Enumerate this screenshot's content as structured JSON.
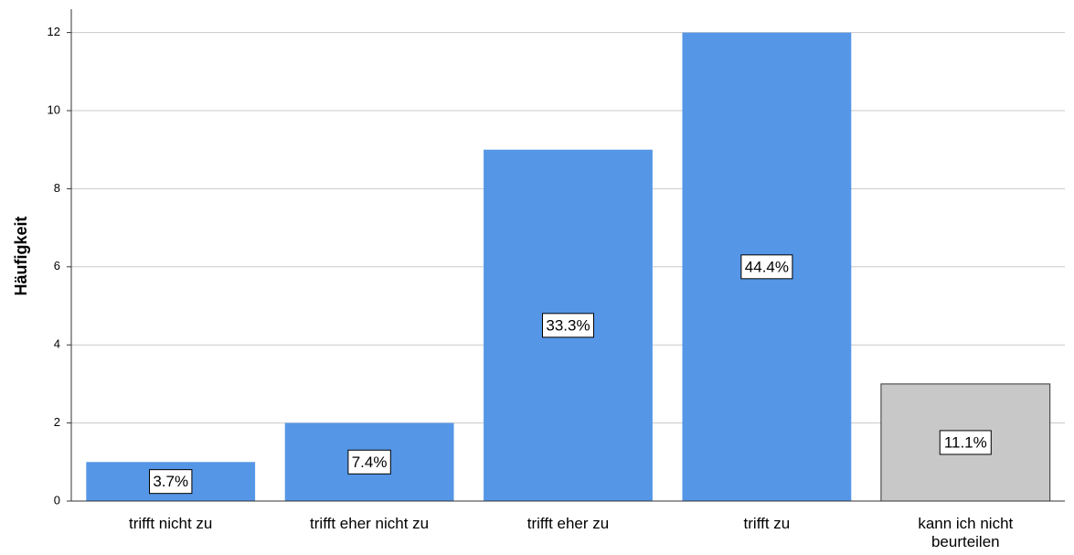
{
  "chart_data": {
    "type": "bar",
    "title": "",
    "xlabel": "",
    "ylabel": "Häufigkeit",
    "ylim": [
      0,
      12.6
    ],
    "yticks": [
      0,
      2,
      4,
      6,
      8,
      10,
      12
    ],
    "grid": true,
    "categories": [
      "trifft nicht zu",
      "trifft eher nicht zu",
      "trifft eher zu",
      "trifft zu",
      "kann ich nicht beurteilen"
    ],
    "values": [
      1,
      2,
      9,
      12,
      3
    ],
    "data_labels": [
      "3.7%",
      "7.4%",
      "33.3%",
      "44.4%",
      "11.1%"
    ],
    "bar_colors": [
      "#5596e6",
      "#5596e6",
      "#5596e6",
      "#5596e6",
      "#c8c8c8"
    ]
  }
}
